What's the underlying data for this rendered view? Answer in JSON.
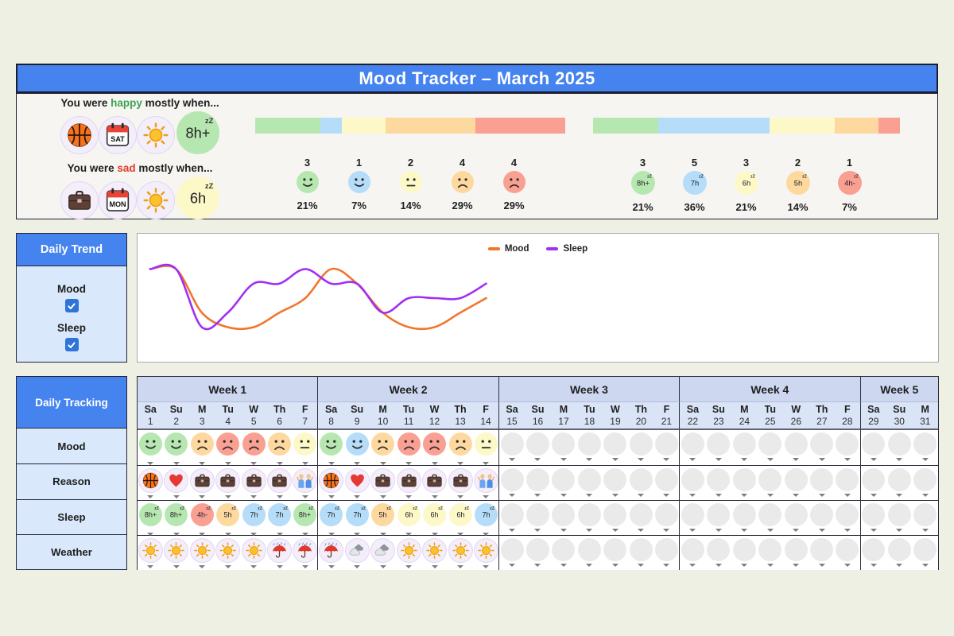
{
  "title": "Mood Tracker – March 2025",
  "palette": {
    "green": "#b7e7b0",
    "blue": "#b5dcf8",
    "yellow": "#fcf8c8",
    "orange": "#fdd9a0",
    "red": "#f9a093",
    "header_blue": "#4583ee",
    "panel_blue": "#d9e8fb",
    "week_band": "#cdd8f0",
    "day_band": "#dae4f7",
    "lavender": "#f3eefa",
    "empty_cell": "#eaeaea",
    "happy_text": "#3da553",
    "sad_text": "#e23b2e",
    "mood_line": "#f2762a",
    "sleep_line": "#a22ef2"
  },
  "mood_colors": {
    "very-happy": "green",
    "happy": "blue",
    "neutral": "yellow",
    "sad": "orange",
    "very-sad": "red"
  },
  "sleep_colors": {
    "8h+": "green",
    "7h": "blue",
    "6h": "yellow",
    "5h": "orange",
    "4h-": "red"
  },
  "summary": {
    "zz_mark": "zZ",
    "happy_line": {
      "prefix": "You were ",
      "highlight": "happy",
      "suffix": " mostly when...",
      "icons": [
        {
          "icon": "basketball"
        },
        {
          "icon": "calendar",
          "label": "SAT"
        },
        {
          "icon": "sun"
        },
        {
          "badge": "8h+",
          "color": "green"
        }
      ]
    },
    "sad_line": {
      "prefix": "You were ",
      "highlight": "sad",
      "suffix": " mostly when...",
      "icons": [
        {
          "icon": "briefcase"
        },
        {
          "icon": "calendar",
          "label": "MON"
        },
        {
          "icon": "sun"
        },
        {
          "badge": "6h",
          "color": "yellow"
        }
      ]
    },
    "mood_stats": {
      "bar": [
        {
          "color": "green",
          "pct": 21
        },
        {
          "color": "blue",
          "pct": 7
        },
        {
          "color": "yellow",
          "pct": 14
        },
        {
          "color": "orange",
          "pct": 29
        },
        {
          "color": "red",
          "pct": 29
        }
      ],
      "items": [
        {
          "count": 3,
          "face": "very-happy",
          "pct": "21%"
        },
        {
          "count": 1,
          "face": "happy",
          "pct": "7%"
        },
        {
          "count": 2,
          "face": "neutral",
          "pct": "14%"
        },
        {
          "count": 4,
          "face": "sad",
          "pct": "29%"
        },
        {
          "count": 4,
          "face": "very-sad",
          "pct": "29%"
        }
      ]
    },
    "sleep_stats": {
      "bar": [
        {
          "color": "green",
          "pct": 21
        },
        {
          "color": "blue",
          "pct": 36
        },
        {
          "color": "yellow",
          "pct": 21
        },
        {
          "color": "orange",
          "pct": 14
        },
        {
          "color": "red",
          "pct": 7
        }
      ],
      "items": [
        {
          "count": 3,
          "badge": "8h+",
          "color": "green",
          "pct": "21%"
        },
        {
          "count": 5,
          "badge": "7h",
          "color": "blue",
          "pct": "36%"
        },
        {
          "count": 3,
          "badge": "6h",
          "color": "yellow",
          "pct": "21%"
        },
        {
          "count": 2,
          "badge": "5h",
          "color": "orange",
          "pct": "14%"
        },
        {
          "count": 1,
          "badge": "4h-",
          "color": "red",
          "pct": "7%"
        }
      ]
    }
  },
  "daily_trend": {
    "title": "Daily Trend",
    "toggles": [
      {
        "label": "Mood",
        "checked": true
      },
      {
        "label": "Sleep",
        "checked": true
      }
    ]
  },
  "chart_data": {
    "type": "line",
    "x": [
      1,
      2,
      3,
      4,
      5,
      6,
      7,
      8,
      9,
      10,
      11,
      12,
      13,
      14
    ],
    "x_range": [
      1,
      31
    ],
    "grid": false,
    "legend_position": "top-center",
    "series": [
      {
        "name": "Mood",
        "color": "#f2762a",
        "values": [
          5,
          5,
          2,
          1,
          1,
          2,
          3,
          5,
          4,
          2,
          1,
          1,
          2,
          3
        ],
        "value_scale": {
          "min": 1,
          "max": 5,
          "meaning": "1=very sad ... 5=very happy"
        }
      },
      {
        "name": "Sleep",
        "color": "#a22ef2",
        "values": [
          8,
          8,
          4,
          5,
          7,
          7,
          8,
          7,
          7,
          5,
          6,
          6,
          6,
          7
        ],
        "value_scale": {
          "min": 4,
          "max": 8,
          "meaning": "hours slept (4h- ... 8h+)"
        }
      }
    ]
  },
  "tracking": {
    "title": "Daily Tracking",
    "row_labels": [
      "Mood",
      "Reason",
      "Sleep",
      "Weather"
    ],
    "weeks": [
      {
        "label": "Week 1",
        "days": [
          {
            "dow": "Sa",
            "date": 1,
            "mood": "very-happy",
            "reason": "basketball",
            "sleep": "8h+",
            "weather": "sunny"
          },
          {
            "dow": "Su",
            "date": 2,
            "mood": "very-happy",
            "reason": "heart",
            "sleep": "8h+",
            "weather": "sunny"
          },
          {
            "dow": "M",
            "date": 3,
            "mood": "sad",
            "reason": "briefcase",
            "sleep": "4h-",
            "weather": "sunny"
          },
          {
            "dow": "Tu",
            "date": 4,
            "mood": "very-sad",
            "reason": "briefcase",
            "sleep": "5h",
            "weather": "sunny"
          },
          {
            "dow": "W",
            "date": 5,
            "mood": "very-sad",
            "reason": "briefcase",
            "sleep": "7h",
            "weather": "sunny"
          },
          {
            "dow": "Th",
            "date": 6,
            "mood": "sad",
            "reason": "briefcase",
            "sleep": "7h",
            "weather": "rainy"
          },
          {
            "dow": "F",
            "date": 7,
            "mood": "neutral",
            "reason": "friends",
            "sleep": "8h+",
            "weather": "rainy"
          }
        ]
      },
      {
        "label": "Week 2",
        "days": [
          {
            "dow": "Sa",
            "date": 8,
            "mood": "very-happy",
            "reason": "basketball",
            "sleep": "7h",
            "weather": "rainy"
          },
          {
            "dow": "Su",
            "date": 9,
            "mood": "happy",
            "reason": "heart",
            "sleep": "7h",
            "weather": "cloudy"
          },
          {
            "dow": "M",
            "date": 10,
            "mood": "sad",
            "reason": "briefcase",
            "sleep": "5h",
            "weather": "cloudy"
          },
          {
            "dow": "Tu",
            "date": 11,
            "mood": "very-sad",
            "reason": "briefcase",
            "sleep": "6h",
            "weather": "sunny"
          },
          {
            "dow": "W",
            "date": 12,
            "mood": "very-sad",
            "reason": "briefcase",
            "sleep": "6h",
            "weather": "sunny"
          },
          {
            "dow": "Th",
            "date": 13,
            "mood": "sad",
            "reason": "briefcase",
            "sleep": "6h",
            "weather": "sunny"
          },
          {
            "dow": "F",
            "date": 14,
            "mood": "neutral",
            "reason": "friends",
            "sleep": "7h",
            "weather": "sunny"
          }
        ]
      },
      {
        "label": "Week 3",
        "days": [
          {
            "dow": "Sa",
            "date": 15
          },
          {
            "dow": "Su",
            "date": 16
          },
          {
            "dow": "M",
            "date": 17
          },
          {
            "dow": "Tu",
            "date": 18
          },
          {
            "dow": "W",
            "date": 19
          },
          {
            "dow": "Th",
            "date": 20
          },
          {
            "dow": "F",
            "date": 21
          }
        ]
      },
      {
        "label": "Week 4",
        "days": [
          {
            "dow": "Sa",
            "date": 22
          },
          {
            "dow": "Su",
            "date": 23
          },
          {
            "dow": "M",
            "date": 24
          },
          {
            "dow": "Tu",
            "date": 25
          },
          {
            "dow": "W",
            "date": 26
          },
          {
            "dow": "Th",
            "date": 27
          },
          {
            "dow": "F",
            "date": 28
          }
        ]
      },
      {
        "label": "Week 5",
        "days": [
          {
            "dow": "Sa",
            "date": 29
          },
          {
            "dow": "Su",
            "date": 30
          },
          {
            "dow": "M",
            "date": 31
          }
        ]
      }
    ]
  }
}
